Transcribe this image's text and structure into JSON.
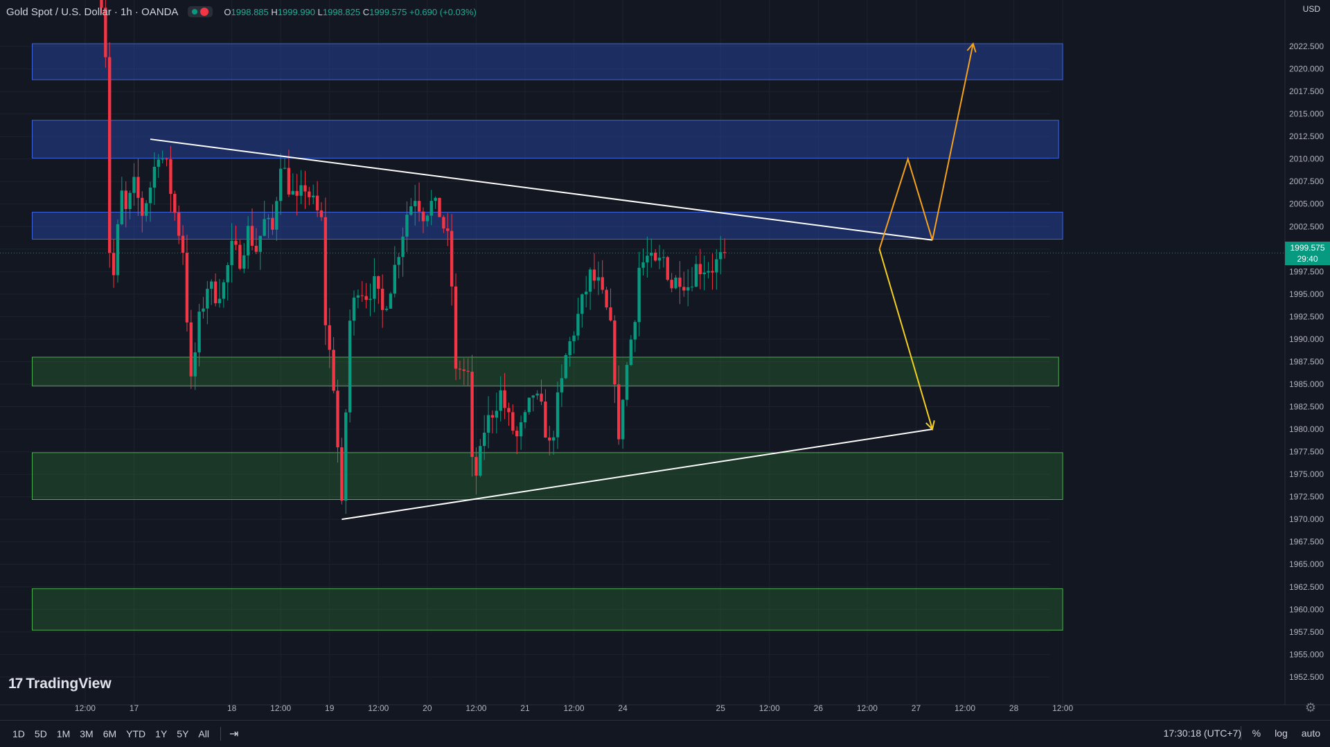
{
  "legend": {
    "title": "Gold Spot / U.S. Dollar · 1h · OANDA",
    "open_label": "O",
    "open": "1998.885",
    "high_label": "H",
    "high": "1999.990",
    "low_label": "L",
    "low": "1998.825",
    "close_label": "C",
    "close": "1999.575",
    "change": "+0.690 (+0.03%)"
  },
  "currency": "USD",
  "logo": {
    "mark": "17",
    "text": "TradingView"
  },
  "price_tag": {
    "price": "1999.575",
    "countdown": "29:40"
  },
  "ranges": [
    "1D",
    "5D",
    "1M",
    "3M",
    "6M",
    "YTD",
    "1Y",
    "5Y",
    "All"
  ],
  "clock": "17:30:18 (UTC+7)",
  "bottom_right": {
    "percent": "%",
    "log": "log",
    "auto": "auto"
  },
  "icons": {
    "goto": "goto-date-icon",
    "settings": "gear-icon",
    "status": "market-status-icon"
  },
  "colors": {
    "background": "#131722",
    "up": "#089981",
    "down": "#f23645",
    "resistance_zone": "#1e3a8a",
    "support_zone": "#1b4d2e",
    "trendline": "#ffffff",
    "bull_path": "#f7a21b",
    "bear_path": "#f5d020"
  },
  "chart_data": {
    "type": "candlestick",
    "symbol": "XAUUSD",
    "timeframe": "1h",
    "ylim": [
      1950.8,
      2025.5
    ],
    "y_ticks": [
      2022.5,
      2020,
      2017.5,
      2015,
      2012.5,
      2010,
      2007.5,
      2005,
      2002.5,
      2000,
      1997.5,
      1995,
      1992.5,
      1990,
      1987.5,
      1985,
      1982.5,
      1980,
      1977.5,
      1975,
      1972.5,
      1970,
      1967.5,
      1965,
      1962.5,
      1960,
      1957.5,
      1955,
      1952.5
    ],
    "x_ticks": [
      {
        "t": -12,
        "label": "12:00"
      },
      {
        "t": 0,
        "label": "17"
      },
      {
        "t": 24,
        "label": "18"
      },
      {
        "t": 36,
        "label": "12:00"
      },
      {
        "t": 48,
        "label": "19"
      },
      {
        "t": 60,
        "label": "12:00"
      },
      {
        "t": 72,
        "label": "20"
      },
      {
        "t": 84,
        "label": "12:00"
      },
      {
        "t": 96,
        "label": "21"
      },
      {
        "t": 108,
        "label": "12:00"
      },
      {
        "t": 120,
        "label": "24"
      },
      {
        "t": 144,
        "label": "25"
      },
      {
        "t": 156,
        "label": "12:00"
      },
      {
        "t": 168,
        "label": "26"
      },
      {
        "t": 180,
        "label": "12:00"
      },
      {
        "t": 192,
        "label": "27"
      },
      {
        "t": 204,
        "label": "12:00"
      },
      {
        "t": 216,
        "label": "28"
      },
      {
        "t": 228,
        "label": "12:00"
      }
    ],
    "last_price": 1999.575,
    "zones": [
      {
        "kind": "resistance",
        "t0": -25,
        "t1": 228,
        "top": 2022.8,
        "bottom": 2018.8
      },
      {
        "kind": "resistance",
        "t0": -25,
        "t1": 227,
        "top": 2014.3,
        "bottom": 2010.1
      },
      {
        "kind": "resistance",
        "t0": -25,
        "t1": 228,
        "top": 2004.1,
        "bottom": 2001.1
      },
      {
        "kind": "support",
        "t0": -25,
        "t1": 227,
        "top": 1988.0,
        "bottom": 1984.8
      },
      {
        "kind": "support",
        "t0": -25,
        "t1": 228,
        "top": 1977.4,
        "bottom": 1972.2
      },
      {
        "kind": "support",
        "t0": -25,
        "t1": 228,
        "top": 1962.3,
        "bottom": 1957.7
      }
    ],
    "trendlines": [
      {
        "t0": 4,
        "p0": 2012.2,
        "t1": 196,
        "p1": 2001.0
      },
      {
        "t0": 51,
        "p0": 1970.0,
        "t1": 196,
        "p1": 1980.0
      }
    ],
    "projections": [
      {
        "kind": "bullish",
        "points": [
          [
            183,
            2000.0
          ],
          [
            190,
            2010.0
          ],
          [
            196,
            2001.0
          ],
          [
            206,
            2022.8
          ]
        ]
      },
      {
        "kind": "bearish",
        "points": [
          [
            183,
            2000.0
          ],
          [
            196,
            1980.0
          ]
        ]
      }
    ],
    "anchors": [
      {
        "t": -8,
        "p": 2028
      },
      {
        "t": -7,
        "p": 2022
      },
      {
        "t": -6,
        "p": 2000
      },
      {
        "t": -5,
        "p": 1997
      },
      {
        "t": -4,
        "p": 2002
      },
      {
        "t": -3,
        "p": 2006
      },
      {
        "t": -2,
        "p": 2004
      },
      {
        "t": 0,
        "p": 2007
      },
      {
        "t": 2,
        "p": 2004
      },
      {
        "t": 4,
        "p": 2007
      },
      {
        "t": 6,
        "p": 2011
      },
      {
        "t": 8,
        "p": 2009
      },
      {
        "t": 10,
        "p": 2004
      },
      {
        "t": 12,
        "p": 2000
      },
      {
        "t": 14,
        "p": 1985
      },
      {
        "t": 16,
        "p": 1992
      },
      {
        "t": 18,
        "p": 1996
      },
      {
        "t": 20,
        "p": 1995
      },
      {
        "t": 22,
        "p": 1996
      },
      {
        "t": 24,
        "p": 2000
      },
      {
        "t": 26,
        "p": 1999
      },
      {
        "t": 28,
        "p": 2002
      },
      {
        "t": 30,
        "p": 2000
      },
      {
        "t": 32,
        "p": 2003
      },
      {
        "t": 34,
        "p": 2002
      },
      {
        "t": 36,
        "p": 2010
      },
      {
        "t": 38,
        "p": 2007
      },
      {
        "t": 40,
        "p": 2005
      },
      {
        "t": 42,
        "p": 2007
      },
      {
        "t": 44,
        "p": 2005
      },
      {
        "t": 46,
        "p": 2003
      },
      {
        "t": 47,
        "p": 1992
      },
      {
        "t": 49,
        "p": 1985
      },
      {
        "t": 50,
        "p": 1978
      },
      {
        "t": 51,
        "p": 1971
      },
      {
        "t": 52,
        "p": 1982
      },
      {
        "t": 53,
        "p": 1992
      },
      {
        "t": 55,
        "p": 1996
      },
      {
        "t": 57,
        "p": 1995
      },
      {
        "t": 59,
        "p": 1996
      },
      {
        "t": 61,
        "p": 1993
      },
      {
        "t": 63,
        "p": 1996
      },
      {
        "t": 65,
        "p": 2000
      },
      {
        "t": 67,
        "p": 2004
      },
      {
        "t": 69,
        "p": 2006
      },
      {
        "t": 71,
        "p": 2004
      },
      {
        "t": 73,
        "p": 2005
      },
      {
        "t": 75,
        "p": 2004
      },
      {
        "t": 77,
        "p": 2001
      },
      {
        "t": 78,
        "p": 1996
      },
      {
        "t": 79,
        "p": 1986
      },
      {
        "t": 80,
        "p": 1987
      },
      {
        "t": 82,
        "p": 1986
      },
      {
        "t": 83,
        "p": 1976
      },
      {
        "t": 84,
        "p": 1975
      },
      {
        "t": 85,
        "p": 1977
      },
      {
        "t": 86,
        "p": 1980
      },
      {
        "t": 88,
        "p": 1982
      },
      {
        "t": 90,
        "p": 1984
      },
      {
        "t": 92,
        "p": 1981
      },
      {
        "t": 94,
        "p": 1979
      },
      {
        "t": 96,
        "p": 1981
      },
      {
        "t": 98,
        "p": 1984
      },
      {
        "t": 100,
        "p": 1982
      },
      {
        "t": 102,
        "p": 1978
      },
      {
        "t": 103,
        "p": 1980
      },
      {
        "t": 104,
        "p": 1983
      },
      {
        "t": 105,
        "p": 1985
      },
      {
        "t": 106,
        "p": 1988
      },
      {
        "t": 108,
        "p": 1991
      },
      {
        "t": 110,
        "p": 1994
      },
      {
        "t": 112,
        "p": 1997
      },
      {
        "t": 114,
        "p": 1996
      },
      {
        "t": 116,
        "p": 1993
      },
      {
        "t": 117,
        "p": 1991
      },
      {
        "t": 118,
        "p": 1986
      },
      {
        "t": 119,
        "p": 1978
      },
      {
        "t": 120,
        "p": 1984
      },
      {
        "t": 121,
        "p": 1987
      },
      {
        "t": 122,
        "p": 1990
      },
      {
        "t": 123,
        "p": 1993
      },
      {
        "t": 124,
        "p": 1998
      },
      {
        "t": 126,
        "p": 1999
      },
      {
        "t": 128,
        "p": 1998
      },
      {
        "t": 130,
        "p": 1999
      },
      {
        "t": 132,
        "p": 1996
      },
      {
        "t": 134,
        "p": 1997
      },
      {
        "t": 136,
        "p": 1996
      },
      {
        "t": 138,
        "p": 1998
      },
      {
        "t": 140,
        "p": 1998
      },
      {
        "t": 142,
        "p": 1998
      },
      {
        "t": 144,
        "p": 1998.9
      },
      {
        "t": 145,
        "p": 1999.6
      }
    ]
  }
}
